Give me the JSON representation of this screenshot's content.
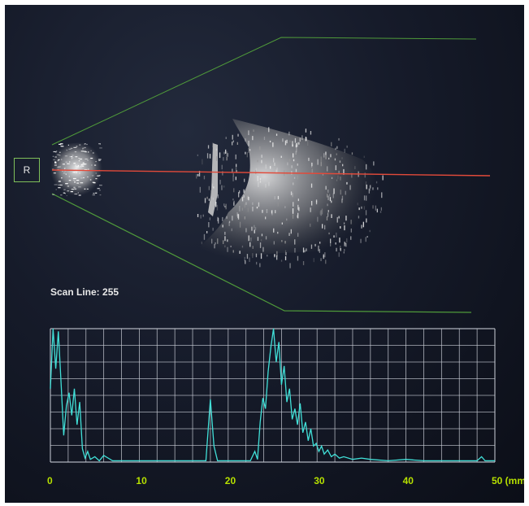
{
  "b_scan": {
    "eye_label": "R",
    "scan_line_text": "Scan Line: 255",
    "marker_color": "#e24a3a",
    "sector_outline_color": "#4f9a3a"
  },
  "a_scan": {
    "trace_color": "#41e0d8",
    "grid_color": "#c9cdd6",
    "x_ticks": [
      "0",
      "10",
      "20",
      "30",
      "40",
      "50 (mm)"
    ],
    "x_tick_values": [
      0,
      10,
      20,
      30,
      40,
      50
    ],
    "xlim": [
      0,
      50
    ]
  },
  "chart_data": {
    "type": "line",
    "xlabel": "(mm)",
    "ylabel": "",
    "xlim": [
      0,
      50
    ],
    "ylim": [
      0,
      100
    ],
    "grid": true,
    "series": [
      {
        "x": [
          0,
          0.3,
          0.6,
          0.9,
          1.2,
          1.5,
          1.8,
          2.1,
          2.4,
          2.7,
          3.0,
          3.3,
          3.6,
          3.9,
          4.2,
          4.5,
          5.0,
          5.5,
          6.0,
          7,
          10,
          15,
          17.5,
          18.0,
          18.4,
          18.8,
          19.5,
          21,
          22.5,
          23.0,
          23.3,
          23.6,
          23.9,
          24.2,
          24.5,
          24.8,
          25.1,
          25.4,
          25.7,
          26.0,
          26.3,
          26.6,
          26.9,
          27.2,
          27.5,
          27.8,
          28.1,
          28.4,
          28.7,
          29.0,
          29.3,
          29.6,
          29.9,
          30.2,
          30.5,
          30.8,
          31.2,
          31.6,
          32.0,
          32.5,
          33,
          34,
          35,
          36,
          38,
          40,
          42,
          45,
          48,
          48.5,
          48.9,
          49.2,
          50
        ],
        "y": [
          55,
          100,
          70,
          98,
          60,
          20,
          42,
          52,
          35,
          55,
          28,
          45,
          10,
          3,
          8,
          2,
          4,
          1,
          5,
          1,
          1,
          1,
          1,
          47,
          12,
          1,
          1,
          1,
          1,
          8,
          2,
          30,
          48,
          40,
          68,
          86,
          100,
          75,
          90,
          58,
          72,
          45,
          55,
          32,
          40,
          28,
          44,
          22,
          30,
          16,
          25,
          12,
          14,
          8,
          12,
          6,
          9,
          4,
          6,
          3,
          4,
          2,
          3,
          2,
          1,
          2,
          1,
          1,
          1,
          4,
          1,
          1,
          1
        ]
      }
    ]
  }
}
